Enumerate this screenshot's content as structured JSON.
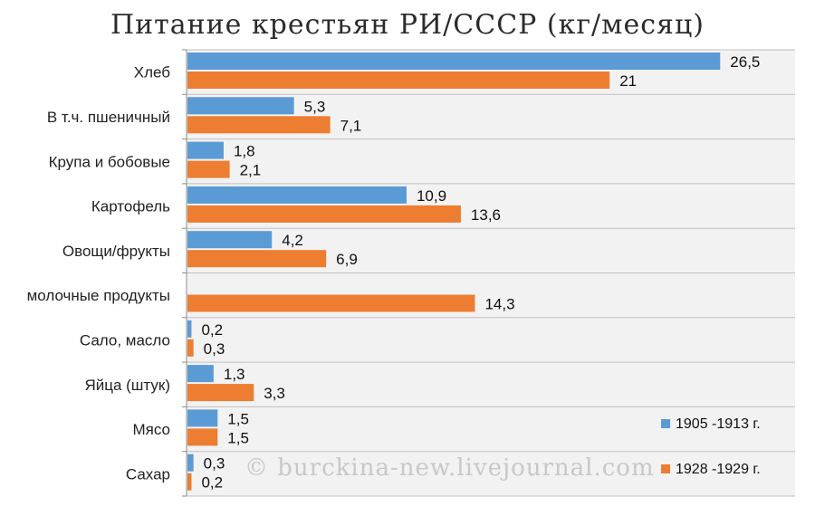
{
  "chart_data": {
    "type": "bar",
    "orientation": "horizontal",
    "title": "Питание крестьян РИ/СССР (кг/месяц)",
    "categories": [
      "Хлеб",
      "В т.ч. пшеничный",
      "Крупа и бобовые",
      "Картофель",
      "Овощи/фрукты",
      "молочные продукты",
      "Сало, масло",
      "Яйца (штук)",
      "Мясо",
      "Сахар"
    ],
    "series": [
      {
        "name": "1905 -1913 г.",
        "color": "#5b9bd5",
        "values": [
          26.5,
          5.3,
          1.8,
          10.9,
          4.2,
          null,
          0.2,
          1.3,
          1.5,
          0.3
        ],
        "labels": [
          "26,5",
          "5,3",
          "1,8",
          "10,9",
          "4,2",
          "",
          "0,2",
          "1,3",
          "1,5",
          "0,3"
        ]
      },
      {
        "name": "1928 -1929 г.",
        "color": "#ed7d31",
        "values": [
          21,
          7.1,
          2.1,
          13.6,
          6.9,
          14.3,
          0.3,
          3.3,
          1.5,
          0.2
        ],
        "labels": [
          "21",
          "7,1",
          "2,1",
          "13,6",
          "6,9",
          "14,3",
          "0,3",
          "3,3",
          "1,5",
          "0,2"
        ]
      }
    ],
    "xlim": [
      0,
      30
    ],
    "grid": true,
    "legend": "bottom-right"
  },
  "watermark": "© burckina-new.livejournal.com"
}
